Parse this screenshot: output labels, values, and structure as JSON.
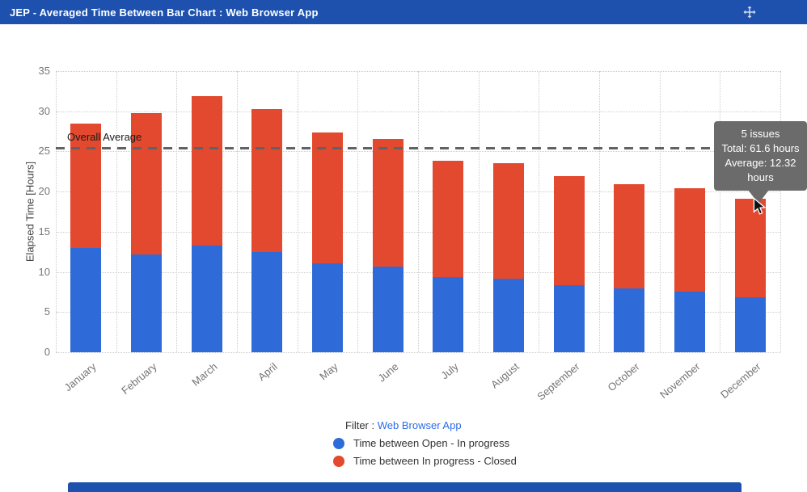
{
  "header": {
    "title": "JEP - Averaged Time Between Bar Chart : Web Browser App"
  },
  "chart_data": {
    "type": "bar",
    "stacked": true,
    "categories": [
      "January",
      "February",
      "March",
      "April",
      "May",
      "June",
      "July",
      "August",
      "September",
      "October",
      "November",
      "December"
    ],
    "series": [
      {
        "name": "Time between Open - In progress",
        "color": "#2f6bd8",
        "values": [
          13.0,
          12.2,
          13.3,
          12.5,
          11.1,
          10.7,
          9.4,
          9.2,
          8.3,
          7.9,
          7.5,
          6.8
        ]
      },
      {
        "name": "Time between In progress - Closed",
        "color": "#e2492e",
        "values": [
          15.5,
          17.6,
          18.6,
          17.8,
          16.3,
          15.9,
          14.4,
          14.3,
          13.6,
          13.0,
          12.9,
          12.32
        ]
      }
    ],
    "ylabel": "Elapsed Time [Hours]",
    "xlabel": "",
    "ylim": [
      0,
      35
    ],
    "yticks": [
      0,
      5,
      10,
      15,
      20,
      25,
      30,
      35
    ],
    "grid": true,
    "legend_position": "bottom",
    "overall_average": {
      "label": "Overall Average",
      "value": 25.5
    }
  },
  "tooltip": {
    "lines": [
      "5 issues",
      "Total: 61.6 hours",
      "Average: 12.32 hours"
    ],
    "target_category": "December"
  },
  "footer": {
    "filter_label": "Filter :",
    "filter_value": "Web Browser App"
  },
  "colors": {
    "header_bg": "#1d51ad",
    "tooltip_bg": "#6b6b6b",
    "link": "#2b6be8",
    "gridline": "#cccccc",
    "average_line": "#5f6368"
  }
}
